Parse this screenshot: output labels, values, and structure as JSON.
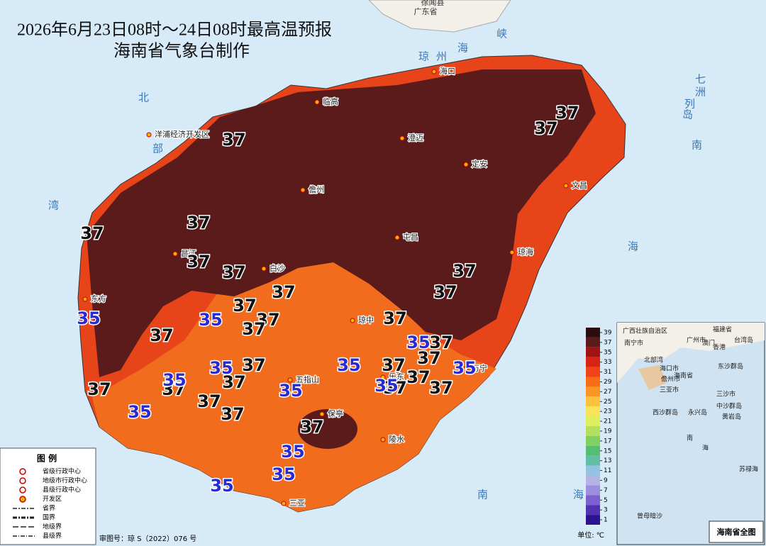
{
  "title": "2026年6月23日08时～24日08时最高温预报",
  "subtitle": "海南省气象台制作",
  "neighbors": [
    "广东省",
    "徐闻县"
  ],
  "sea_labels": [
    "琼",
    "州",
    "海",
    "峡",
    "北",
    "部",
    "湾",
    "南",
    "海",
    "七",
    "洲",
    "列",
    "岛",
    "南",
    "海"
  ],
  "places": [
    "海口",
    "临高",
    "澄迈",
    "定安",
    "文昌",
    "洋浦经济开发区",
    "儋州",
    "屯昌",
    "琼海",
    "昌江",
    "白沙",
    "东方",
    "琼中",
    "五指山",
    "万宁",
    "乐东",
    "保亭",
    "陵水",
    "三亚"
  ],
  "contour_labels": [
    37,
    37,
    37,
    37,
    37,
    37,
    37,
    37,
    37,
    37,
    37,
    37,
    37,
    37,
    37,
    37,
    37,
    37,
    37,
    37,
    37,
    37,
    37,
    37,
    37,
    37,
    37,
    37,
    35,
    35,
    35,
    35,
    35,
    35,
    35,
    35,
    35,
    35,
    35,
    35,
    35
  ],
  "colorbar": {
    "ticks": [
      39,
      37,
      35,
      33,
      31,
      29,
      27,
      25,
      23,
      21,
      19,
      17,
      15,
      13,
      11,
      9,
      7,
      5,
      3,
      1
    ],
    "colors": [
      "#2a0e0e",
      "#5c1b1b",
      "#a31212",
      "#d82414",
      "#f04418",
      "#f86c14",
      "#fb9624",
      "#fcc23c",
      "#f6e45a",
      "#dcef5c",
      "#b2e05c",
      "#82d062",
      "#52bf72",
      "#62bfa6",
      "#92c4e2",
      "#b4b4e4",
      "#9e8ee0",
      "#7e60d0",
      "#5232b2",
      "#2c1290"
    ],
    "unit": "单位: ℃"
  },
  "legend": {
    "title": "图  例",
    "items": [
      "省级行政中心",
      "地级市行政中心",
      "县级行政中心",
      "开发区",
      "省界",
      "国界",
      "地级界",
      "县级界"
    ]
  },
  "approval": "审图号：琼 S（2022）076 号",
  "inset": {
    "title": "海南省全图",
    "labels": [
      "广西壮族自治区",
      "福建省",
      "南宁市",
      "广州市",
      "澳门",
      "香港",
      "台湾岛",
      "北部湾",
      "海口市",
      "儋州市",
      "三亚市",
      "三沙市",
      "海南省",
      "东沙群岛",
      "西沙群岛",
      "永兴岛",
      "中沙群岛",
      "黄岩岛",
      "南",
      "海",
      "苏禄海",
      "曾母暗沙"
    ]
  }
}
